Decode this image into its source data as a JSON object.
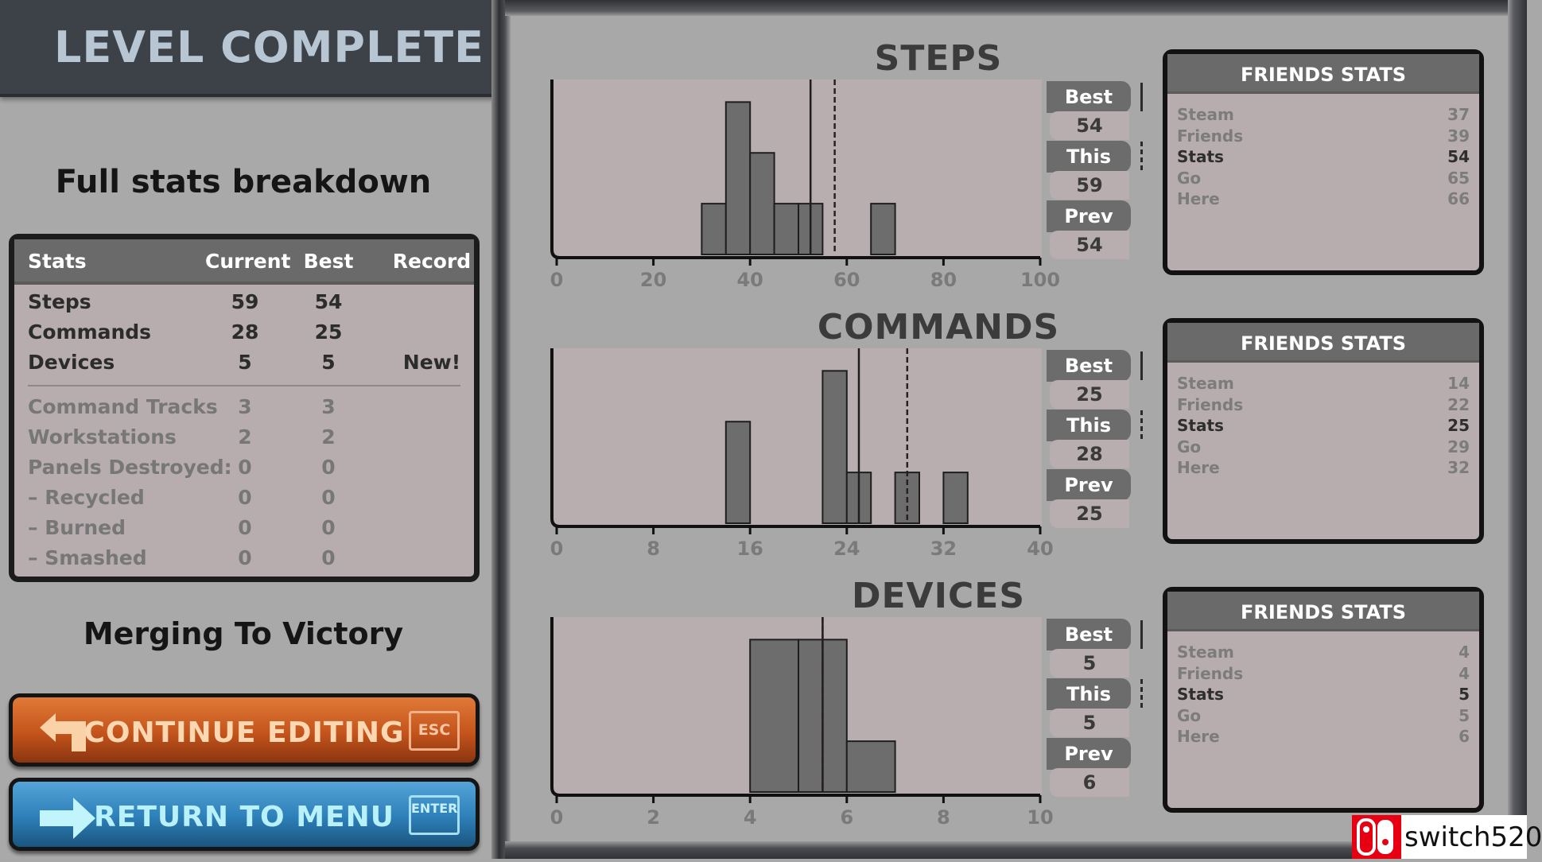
{
  "header": {
    "title": "LEVEL COMPLETE"
  },
  "left": {
    "heading": "Full stats breakdown",
    "level_name": "Merging To Victory"
  },
  "stats_table": {
    "columns": [
      "Stats",
      "Current",
      "Best",
      "Record"
    ],
    "primary_rows": [
      {
        "label": "Steps",
        "current": "59",
        "best": "54",
        "record": ""
      },
      {
        "label": "Commands",
        "current": "28",
        "best": "25",
        "record": ""
      },
      {
        "label": "Devices",
        "current": "5",
        "best": "5",
        "record": "New!"
      }
    ],
    "secondary_rows": [
      {
        "label": "Command Tracks",
        "current": "3",
        "best": "3"
      },
      {
        "label": "Workstations",
        "current": "2",
        "best": "2"
      },
      {
        "label": "Panels Destroyed:",
        "current": "0",
        "best": "0"
      },
      {
        "label": "– Recycled",
        "current": "0",
        "best": "0"
      },
      {
        "label": "– Burned",
        "current": "0",
        "best": "0"
      },
      {
        "label": "– Smashed",
        "current": "0",
        "best": "0"
      }
    ]
  },
  "buttons": {
    "continue": {
      "label": "CONTINUE EDITING",
      "key": "ESC",
      "icon": "return-arrow-icon",
      "color": "#c9581f"
    },
    "menu": {
      "label": "RETURN TO MENU",
      "key": "ENTER",
      "icon": "right-arrow-icon",
      "color": "#2f83bc"
    }
  },
  "tab_labels": {
    "best": "Best",
    "this": "This",
    "prev": "Prev"
  },
  "friends_title": "FRIENDS STATS",
  "chart_data": [
    {
      "type": "bar",
      "title": "STEPS",
      "xlim": [
        0,
        100
      ],
      "xticks": [
        0,
        20,
        40,
        60,
        80,
        100
      ],
      "bin_width": 5,
      "bins": [
        {
          "start": 30,
          "count": 1
        },
        {
          "start": 35,
          "count": 3
        },
        {
          "start": 40,
          "count": 2
        },
        {
          "start": 45,
          "count": 1
        },
        {
          "start": 50,
          "count": 1
        },
        {
          "start": 65,
          "count": 1
        }
      ],
      "best": "54",
      "this": "59",
      "prev": "54",
      "friends": [
        {
          "name": "Steam",
          "value": "37"
        },
        {
          "name": "Friends",
          "value": "39"
        },
        {
          "name": "Stats",
          "value": "54",
          "self": true
        },
        {
          "name": "Go",
          "value": "65"
        },
        {
          "name": "Here",
          "value": "66"
        }
      ]
    },
    {
      "type": "bar",
      "title": "COMMANDS",
      "xlim": [
        0,
        40
      ],
      "xticks": [
        0,
        8,
        16,
        24,
        32,
        40
      ],
      "bin_width": 2,
      "bins": [
        {
          "start": 14,
          "count": 2
        },
        {
          "start": 22,
          "count": 3
        },
        {
          "start": 24,
          "count": 1
        },
        {
          "start": 28,
          "count": 1
        },
        {
          "start": 32,
          "count": 1
        }
      ],
      "best": "25",
      "this": "28",
      "prev": "25",
      "friends": [
        {
          "name": "Steam",
          "value": "14"
        },
        {
          "name": "Friends",
          "value": "22"
        },
        {
          "name": "Stats",
          "value": "25",
          "self": true
        },
        {
          "name": "Go",
          "value": "29"
        },
        {
          "name": "Here",
          "value": "32"
        }
      ]
    },
    {
      "type": "bar",
      "title": "DEVICES",
      "xlim": [
        0,
        10
      ],
      "xticks": [
        0,
        2,
        4,
        6,
        8,
        10
      ],
      "bin_width": 1,
      "bins": [
        {
          "start": 4,
          "count": 3
        },
        {
          "start": 5,
          "count": 3
        },
        {
          "start": 6,
          "count": 1
        }
      ],
      "best": "5",
      "this": "5",
      "prev": "6",
      "friends": [
        {
          "name": "Steam",
          "value": "4"
        },
        {
          "name": "Friends",
          "value": "4"
        },
        {
          "name": "Stats",
          "value": "5",
          "self": true
        },
        {
          "name": "Go",
          "value": "5"
        },
        {
          "name": "Here",
          "value": "6"
        }
      ]
    }
  ],
  "watermark": {
    "text": "switch520",
    "logo": "nintendo-switch-logo"
  }
}
